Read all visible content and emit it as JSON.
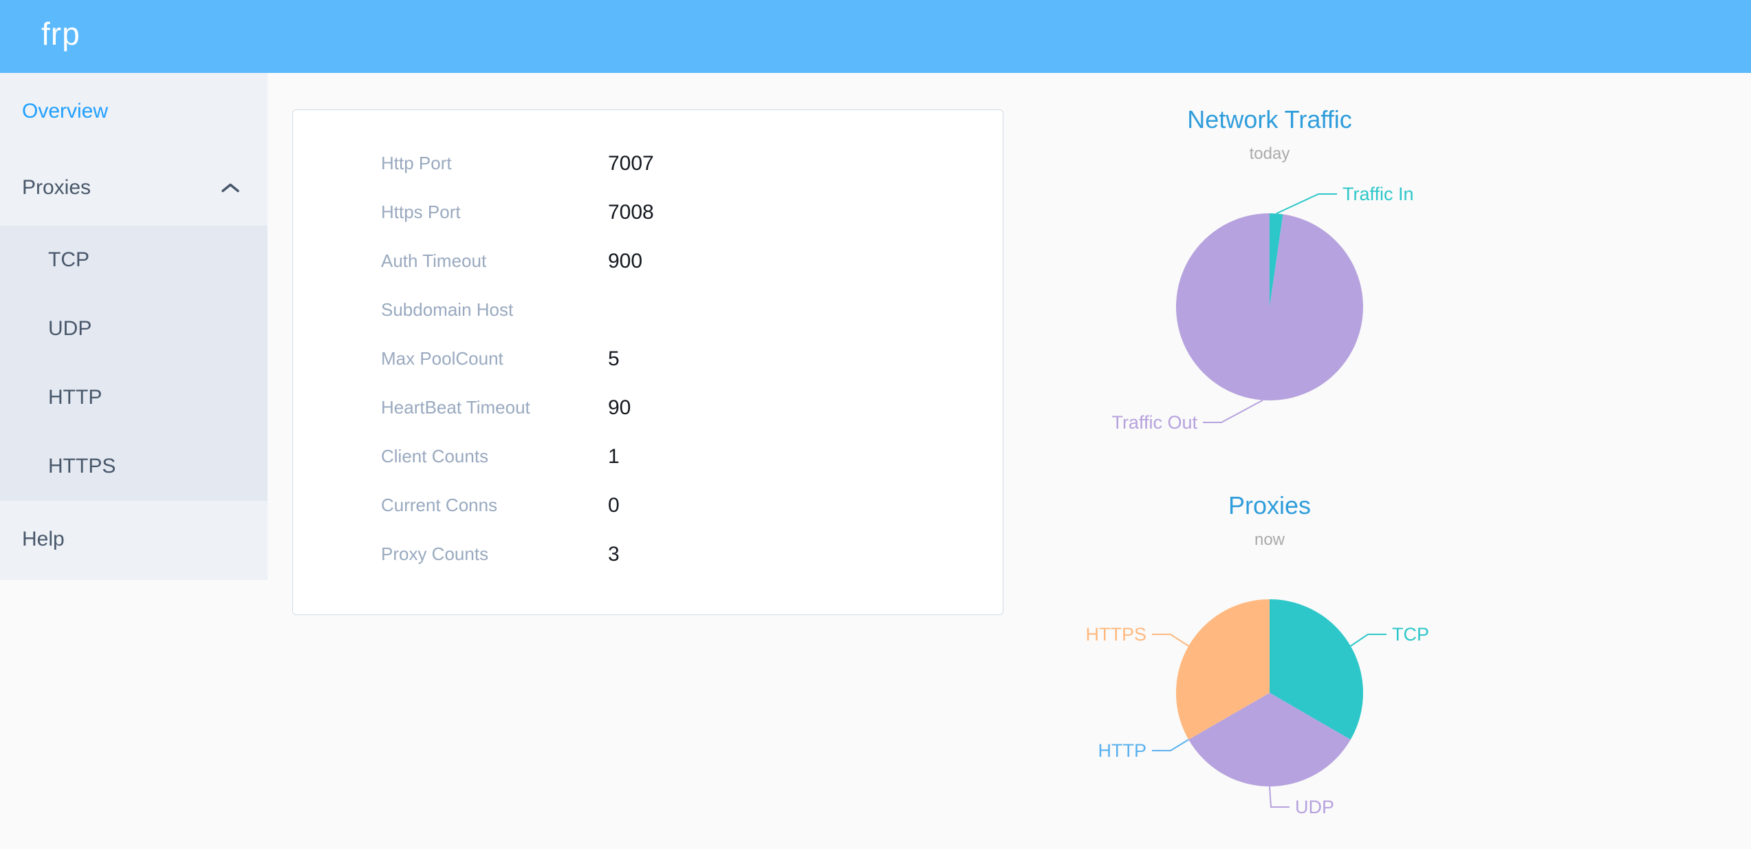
{
  "header": {
    "logo": "frp"
  },
  "sidebar": {
    "overview": {
      "label": "Overview",
      "active": true
    },
    "proxies": {
      "label": "Proxies",
      "expanded": true,
      "children": [
        {
          "label": "TCP"
        },
        {
          "label": "UDP"
        },
        {
          "label": "HTTP"
        },
        {
          "label": "HTTPS"
        }
      ]
    },
    "help": {
      "label": "Help"
    }
  },
  "overview_card": {
    "rows": [
      {
        "label": "Http Port",
        "value": "7007"
      },
      {
        "label": "Https Port",
        "value": "7008"
      },
      {
        "label": "Auth Timeout",
        "value": "900"
      },
      {
        "label": "Subdomain Host",
        "value": ""
      },
      {
        "label": "Max PoolCount",
        "value": "5"
      },
      {
        "label": "HeartBeat Timeout",
        "value": "90"
      },
      {
        "label": "Client Counts",
        "value": "1"
      },
      {
        "label": "Current Conns",
        "value": "0"
      },
      {
        "label": "Proxy Counts",
        "value": "3"
      }
    ]
  },
  "chart_data": [
    {
      "type": "pie",
      "title": "Network Traffic",
      "subtitle": "today",
      "unit": "percent_of_today_traffic",
      "radius": 136,
      "legend_position": "callout-labels",
      "slices": [
        {
          "name": "Traffic In",
          "value": 2.3,
          "color": "#2ec7c9",
          "label_offset": [
            106,
            -164
          ]
        },
        {
          "name": "Traffic Out",
          "value": 97.7,
          "color": "#b6a2de",
          "label_offset": [
            -105,
            168
          ]
        }
      ]
    },
    {
      "type": "pie",
      "title": "Proxies",
      "subtitle": "now",
      "unit": "proxy_count",
      "radius": 136,
      "legend_position": "callout-labels",
      "slices": [
        {
          "name": "TCP",
          "value": 1,
          "color": "#2ec7c9",
          "label_offset": [
            178,
            -85
          ]
        },
        {
          "name": "UDP",
          "value": 1,
          "color": "#b6a2de",
          "label_offset": [
            37,
            166
          ]
        },
        {
          "name": "HTTP",
          "value": 0,
          "color": "#5ab1ef",
          "label_offset": [
            -179,
            84
          ]
        },
        {
          "name": "HTTPS",
          "value": 1,
          "color": "#ffb980",
          "label_offset": [
            -179,
            -85
          ]
        }
      ]
    }
  ]
}
